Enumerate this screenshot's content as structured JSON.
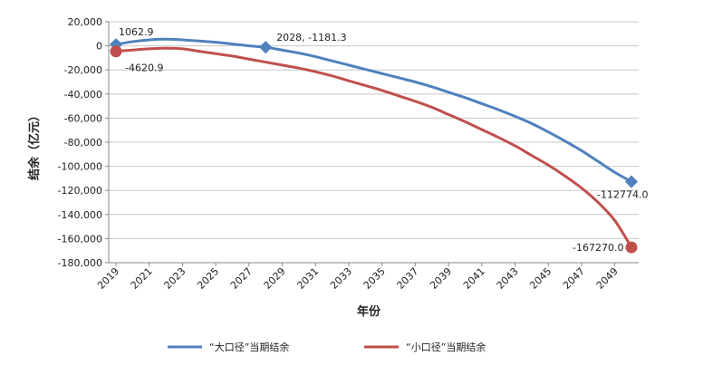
{
  "chart_data": {
    "type": "line",
    "title": "",
    "xlabel": "年份",
    "ylabel": "结余（亿元）",
    "ylim": [
      -180000,
      20000
    ],
    "y_ticks": [
      20000,
      0,
      -20000,
      -40000,
      -60000,
      -80000,
      -100000,
      -120000,
      -140000,
      -160000,
      -180000
    ],
    "y_tick_labels": [
      "20,000",
      "0",
      "-20,000",
      "-40,000",
      "-60,000",
      "-80,000",
      "-100,000",
      "-120,000",
      "-140,000",
      "-160,000",
      "-180,000"
    ],
    "x_ticks": [
      "2019",
      "2021",
      "2023",
      "2025",
      "2027",
      "2029",
      "2031",
      "2033",
      "2035",
      "2037",
      "2039",
      "2041",
      "2043",
      "2045",
      "2047",
      "2049"
    ],
    "grid": "horizontal",
    "legend_position": "bottom",
    "x": [
      2019,
      2020,
      2021,
      2022,
      2023,
      2024,
      2025,
      2026,
      2027,
      2028,
      2029,
      2030,
      2031,
      2032,
      2033,
      2034,
      2035,
      2036,
      2037,
      2038,
      2039,
      2040,
      2041,
      2042,
      2043,
      2044,
      2045,
      2046,
      2047,
      2048,
      2049,
      2050
    ],
    "series": [
      {
        "name": "“大口径”当期结余",
        "color": "#4f81bd",
        "values": [
          1062.9,
          3500,
          5000,
          5500,
          5000,
          4000,
          3000,
          1500,
          0,
          -1181.3,
          -3500,
          -6000,
          -9000,
          -12500,
          -16000,
          -19500,
          -23000,
          -26500,
          -30000,
          -34000,
          -38500,
          -43000,
          -48000,
          -53000,
          -58500,
          -64500,
          -71500,
          -79000,
          -87000,
          -96000,
          -105000,
          -112774.0
        ]
      },
      {
        "name": "“小口径”当期结余",
        "color": "#c0504d",
        "values": [
          -4620.9,
          -3500,
          -2500,
          -2000,
          -2500,
          -4500,
          -6500,
          -8500,
          -11000,
          -13500,
          -16000,
          -18500,
          -21500,
          -25000,
          -29000,
          -33000,
          -37000,
          -41500,
          -46000,
          -51000,
          -57000,
          -63000,
          -69500,
          -76000,
          -83000,
          -91000,
          -99000,
          -108000,
          -118000,
          -130000,
          -145000,
          -167270.0
        ]
      }
    ],
    "annotations": [
      {
        "series": 0,
        "index": 0,
        "label": "1062.9"
      },
      {
        "series": 1,
        "index": 0,
        "label": "-4620.9"
      },
      {
        "series": 0,
        "index": 9,
        "label": "2028, -1181.3"
      },
      {
        "series": 0,
        "index": 31,
        "label": "-112774.0"
      },
      {
        "series": 1,
        "index": 31,
        "label": "-167270.0"
      }
    ]
  }
}
